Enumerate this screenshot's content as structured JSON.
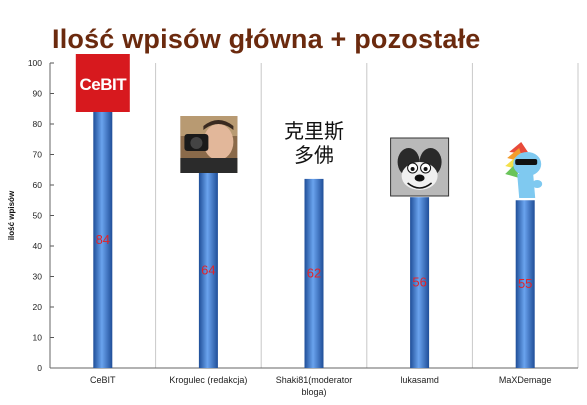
{
  "chart_data": {
    "type": "bar",
    "title": "Ilość wpisów główna + pozostałe",
    "xlabel": "",
    "ylabel": "ilość wpisów",
    "ylim": [
      0,
      100
    ],
    "yticks": [
      0,
      10,
      20,
      30,
      40,
      50,
      60,
      70,
      80,
      90,
      100
    ],
    "categories": [
      "CeBIT",
      "Krogulec (redakcja)",
      "Shaki81(moderator bloga)",
      "lukasamd",
      "MaXDemage"
    ],
    "category_label_lines": [
      [
        "CeBIT"
      ],
      [
        "Krogulec (redakcja)"
      ],
      [
        "Shaki81(moderator",
        "bloga)"
      ],
      [
        "lukasamd"
      ],
      [
        "MaXDemage"
      ]
    ],
    "values": [
      84,
      64,
      62,
      56,
      55
    ],
    "data_labels": [
      "84",
      "64",
      "62",
      "56",
      "55"
    ],
    "grid": true,
    "legend": "none",
    "colors": {
      "bar_dark": "#1f4e98",
      "bar_mid": "#3f7fd6",
      "bar_light": "#6aa3ee",
      "data_label": "#e0242a",
      "title": "#6b2a0e",
      "grid": "#c8c8c8"
    },
    "bar_images": [
      {
        "category": "CeBIT",
        "icon": "cebit-logo",
        "text": "CeBIT"
      },
      {
        "category": "Krogulec (redakcja)",
        "icon": "photographer-avatar"
      },
      {
        "category": "Shaki81(moderator bloga)",
        "icon": "chinese-characters-avatar",
        "text_lines": [
          "克里斯",
          "多佛"
        ]
      },
      {
        "category": "lukasamd",
        "icon": "cartoon-dog-avatar"
      },
      {
        "category": "MaXDemage",
        "icon": "pony-with-sunglasses-avatar"
      }
    ]
  }
}
